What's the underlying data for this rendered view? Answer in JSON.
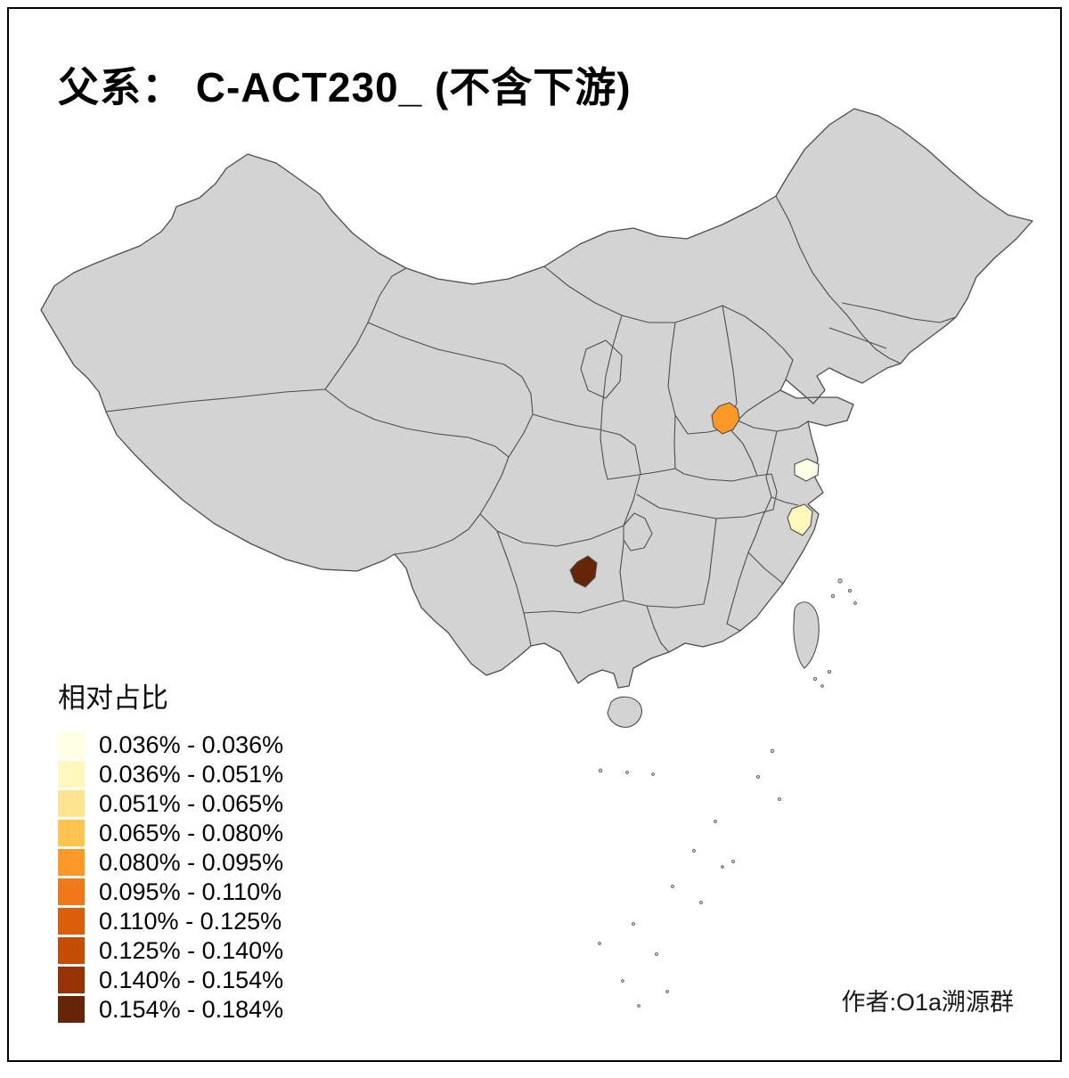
{
  "title": "父系： C-ACT230_ (不含下游)",
  "attribution": "作者:O1a溯源群",
  "legend": {
    "title": "相对占比",
    "items": [
      {
        "label": "0.036% - 0.036%",
        "color": "#FFFFE5"
      },
      {
        "label": "0.036% - 0.051%",
        "color": "#FFF7BC"
      },
      {
        "label": "0.051% - 0.065%",
        "color": "#FEE391"
      },
      {
        "label": "0.065% - 0.080%",
        "color": "#FEC44F"
      },
      {
        "label": "0.080% - 0.095%",
        "color": "#FE9929"
      },
      {
        "label": "0.095% - 0.110%",
        "color": "#F07818"
      },
      {
        "label": "0.110% - 0.125%",
        "color": "#DB5E0B"
      },
      {
        "label": "0.125% - 0.140%",
        "color": "#C24D03"
      },
      {
        "label": "0.140% - 0.154%",
        "color": "#953304"
      },
      {
        "label": "0.154% - 0.184%",
        "color": "#662506"
      }
    ]
  },
  "map": {
    "base_fill": "#D3D3D3",
    "border_color": "#4D4D4D",
    "background": "#FFFFFF",
    "highlighted_regions": [
      {
        "id": "region-shandong-west",
        "color": "#FE9929",
        "bin": "0.080% - 0.095%"
      },
      {
        "id": "region-jiangsu-coast",
        "color": "#FFFFE5",
        "bin": "0.036% - 0.036%"
      },
      {
        "id": "region-zhejiang-north",
        "color": "#FFF7BC",
        "bin": "0.036% - 0.051%"
      },
      {
        "id": "region-guizhou-north",
        "color": "#662506",
        "bin": "0.154% - 0.184%"
      }
    ]
  }
}
